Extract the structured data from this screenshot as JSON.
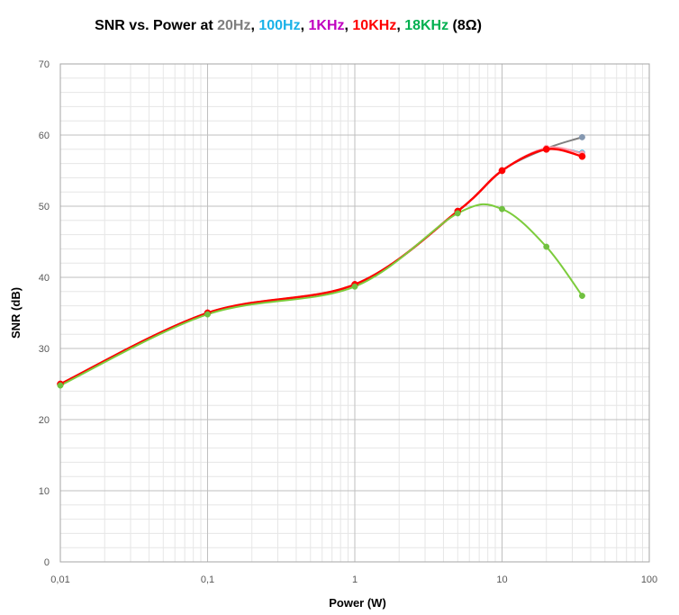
{
  "chart_data": {
    "type": "line",
    "title_parts": [
      {
        "text": "SNR vs. Power at ",
        "color": "#000000"
      },
      {
        "text": "20Hz",
        "color": "#7f7f7f"
      },
      {
        "text": ", ",
        "color": "#000000"
      },
      {
        "text": "100Hz",
        "color": "#1ab2e8"
      },
      {
        "text": ", ",
        "color": "#000000"
      },
      {
        "text": "1KHz",
        "color": "#c000c0"
      },
      {
        "text": ", ",
        "color": "#000000"
      },
      {
        "text": "10KHz",
        "color": "#ff0000"
      },
      {
        "text": ", ",
        "color": "#000000"
      },
      {
        "text": "18KHz",
        "color": "#00b050"
      },
      {
        "text": " (8Ω)",
        "color": "#000000"
      }
    ],
    "xlabel": "Power (W)",
    "ylabel": "SNR  (dB)",
    "x_scale": "log",
    "xlim": [
      0.01,
      100
    ],
    "ylim": [
      0,
      70
    ],
    "x_ticks": [
      0.01,
      0.1,
      1,
      10,
      100
    ],
    "x_tick_labels": [
      "0,01",
      "0,1",
      "1",
      "10",
      "100"
    ],
    "y_ticks": [
      0,
      10,
      20,
      30,
      40,
      50,
      60,
      70
    ],
    "y_tick_labels": [
      "0",
      "10",
      "20",
      "30",
      "40",
      "50",
      "60",
      "70"
    ],
    "grid": true,
    "series": [
      {
        "color": "#8497b0",
        "line_color": "#808080",
        "x": [
          0.01,
          0.1,
          1,
          5,
          10,
          20,
          35
        ],
        "y": [
          25.0,
          35.0,
          39.0,
          49.3,
          55.0,
          58.1,
          59.7
        ]
      },
      {
        "color": "#1ab2e8",
        "line_color": "#1ab2e8",
        "x": [
          0.01,
          0.1,
          1,
          5,
          10,
          20,
          35
        ],
        "y": [
          25.0,
          35.0,
          39.0,
          49.3,
          55.0,
          58.1,
          57.5
        ]
      },
      {
        "color": "#ff9fb0",
        "line_color": "#ff9fb0",
        "x": [
          0.01,
          0.1,
          1,
          5,
          10,
          20,
          35
        ],
        "y": [
          25.0,
          35.0,
          39.0,
          49.3,
          55.0,
          58.2,
          57.4
        ]
      },
      {
        "color": "#ff0000",
        "line_color": "#ff0000",
        "x": [
          0.01,
          0.1,
          1,
          5,
          10,
          20,
          35
        ],
        "y": [
          25.0,
          35.0,
          39.0,
          49.3,
          55.0,
          58.0,
          57.0
        ]
      },
      {
        "color": "#70c040",
        "line_color": "#7ccc3c",
        "x": [
          0.01,
          0.1,
          1,
          5,
          10,
          20,
          35
        ],
        "y": [
          24.8,
          34.8,
          38.7,
          49.0,
          49.6,
          44.3,
          37.4
        ]
      }
    ]
  }
}
